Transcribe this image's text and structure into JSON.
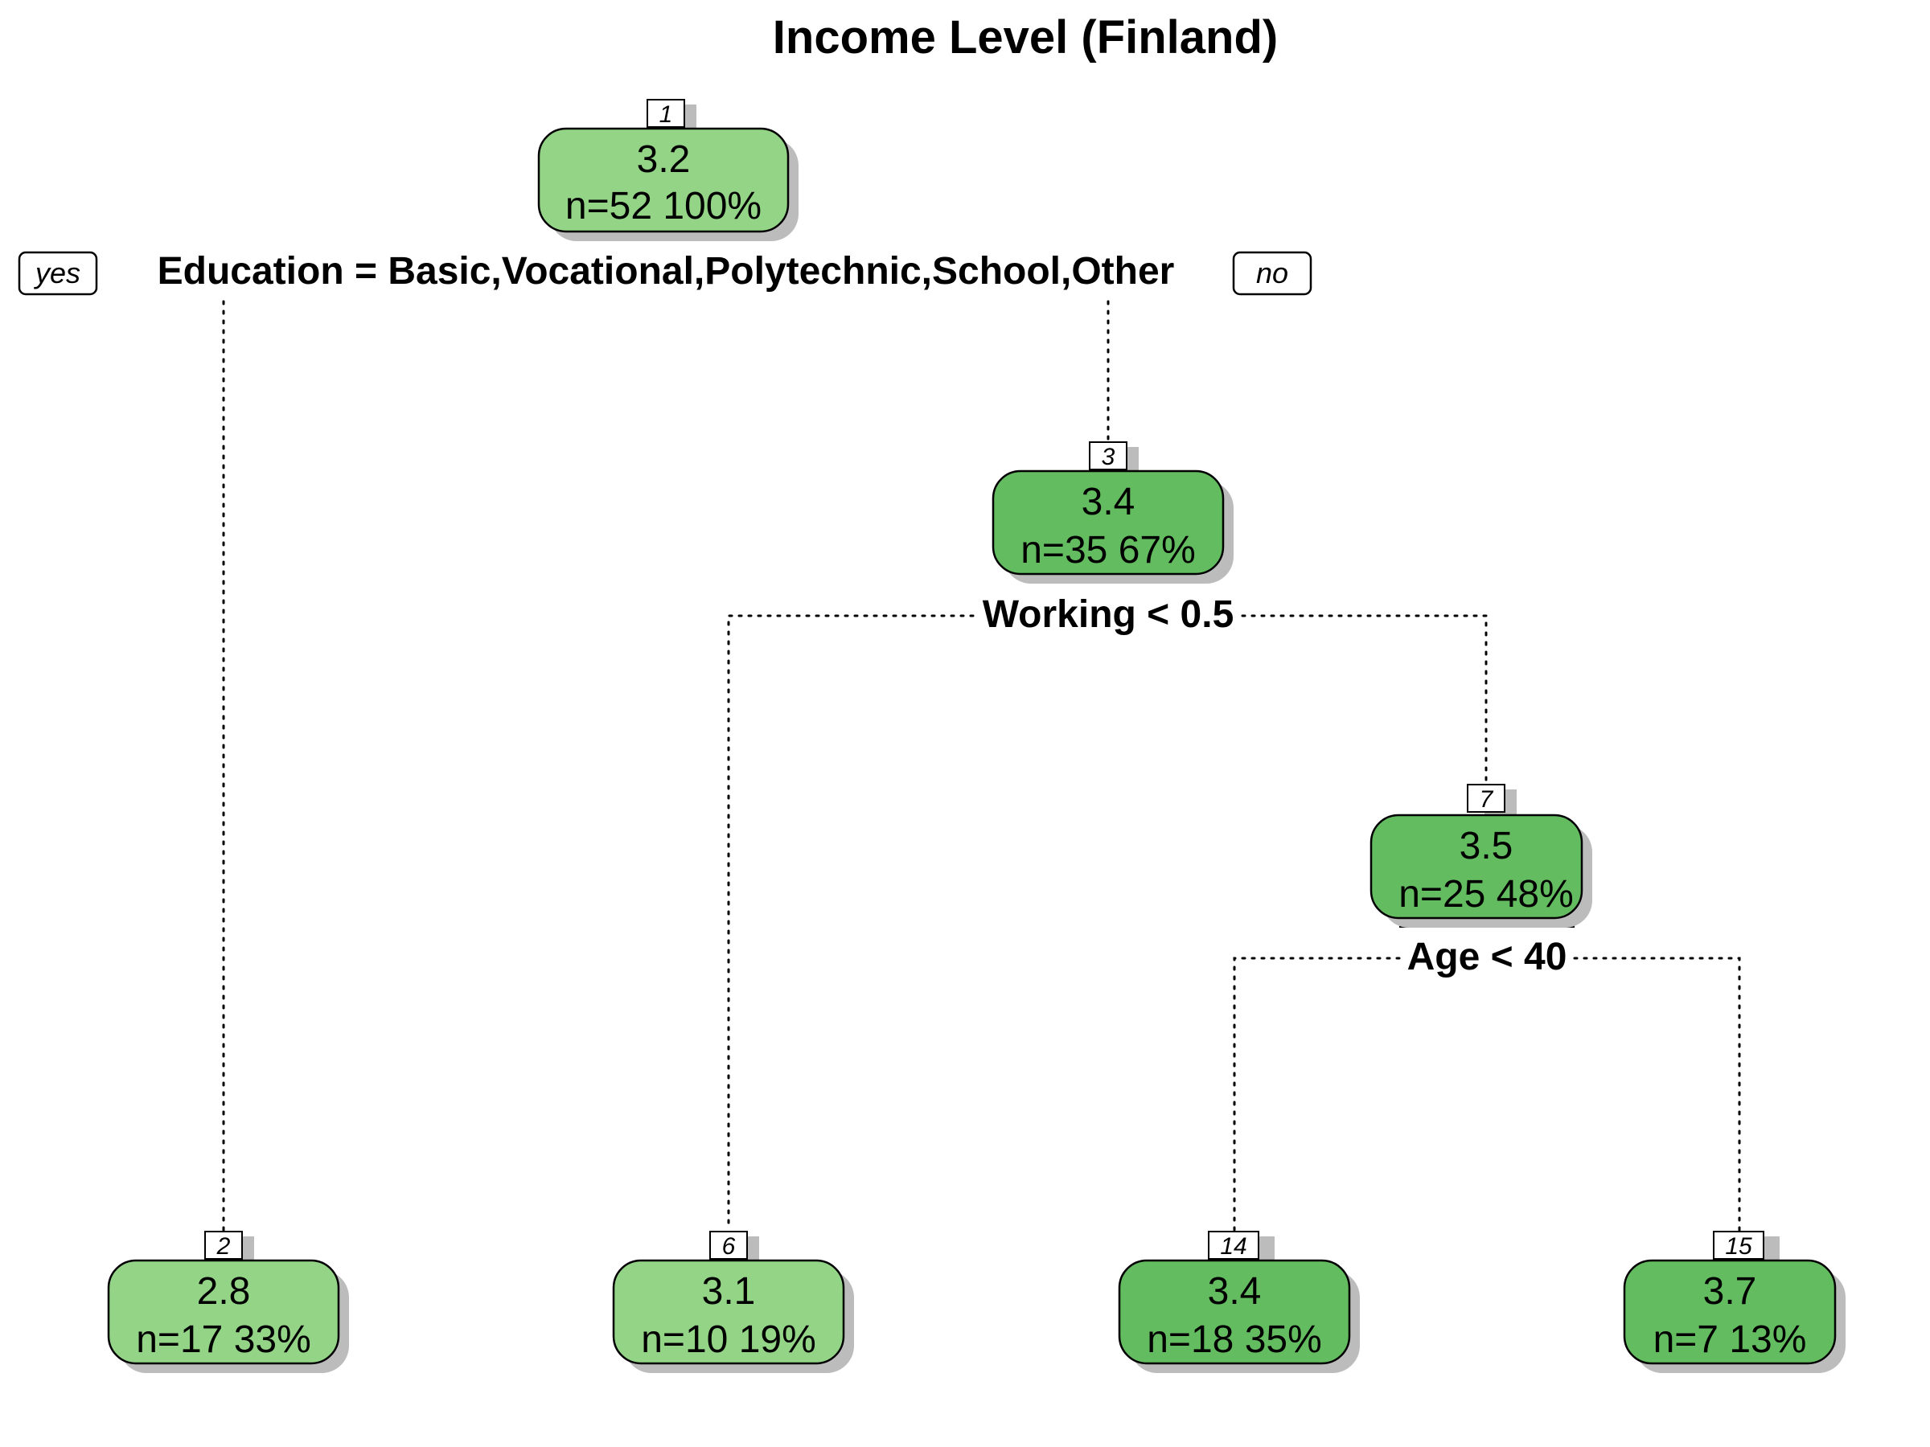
{
  "title": "Income Level (Finland)",
  "colors": {
    "light_green": "#94d487",
    "medium_green": "#63bc5f",
    "shadow": "#bcbcbc",
    "border": "#000000"
  },
  "branch_labels": {
    "yes": "yes",
    "no": "no"
  },
  "splits": {
    "n1": "Education = Basic,Vocational,Polytechnic,School,Other",
    "n3": "Working < 0.5",
    "n7": "Age < 40"
  },
  "nodes": {
    "n1": {
      "number": "1",
      "value": "3.2",
      "stats": "n=52  100%",
      "fill": "light"
    },
    "n2": {
      "number": "2",
      "value": "2.8",
      "stats": "n=17  33%",
      "fill": "light"
    },
    "n3": {
      "number": "3",
      "value": "3.4",
      "stats": "n=35  67%",
      "fill": "medium"
    },
    "n6": {
      "number": "6",
      "value": "3.1",
      "stats": "n=10  19%",
      "fill": "light"
    },
    "n7": {
      "number": "7",
      "value": "3.5",
      "stats": "n=25  48%",
      "fill": "medium"
    },
    "n14": {
      "number": "14",
      "value": "3.4",
      "stats": "n=18  35%",
      "fill": "medium"
    },
    "n15": {
      "number": "15",
      "value": "3.7",
      "stats": "n=7  13%",
      "fill": "medium"
    }
  }
}
